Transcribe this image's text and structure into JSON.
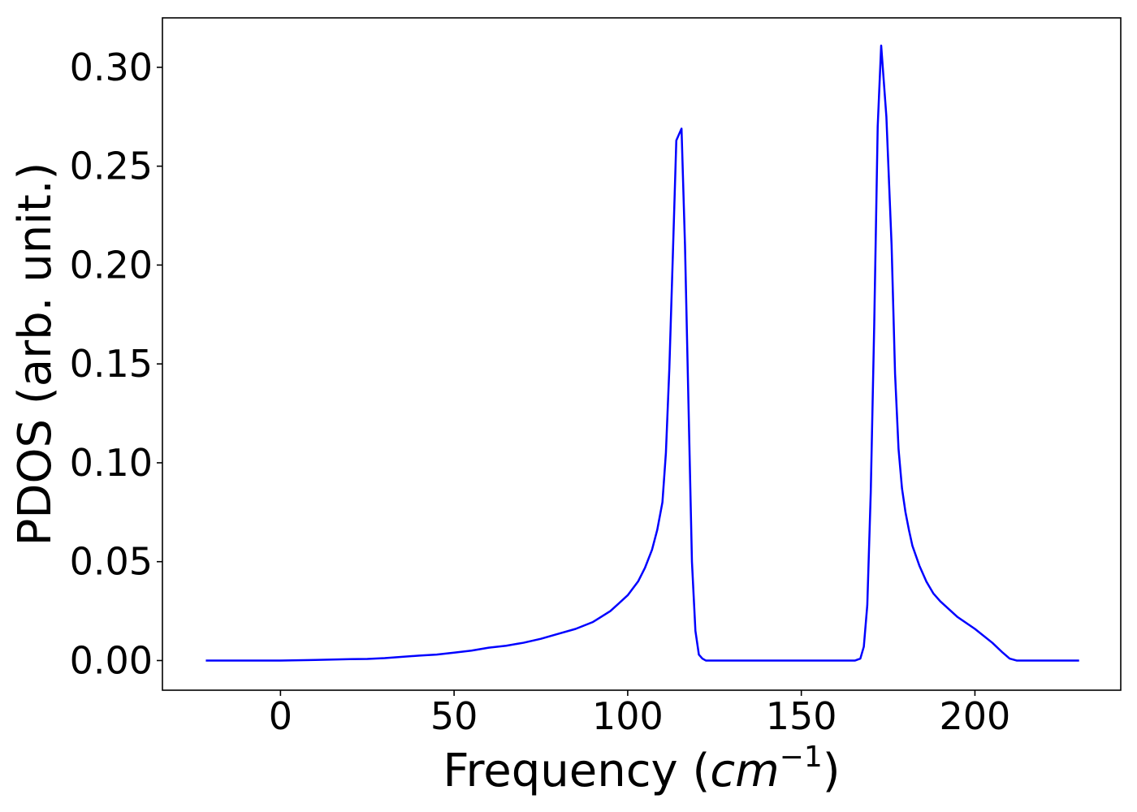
{
  "chart_data": {
    "type": "line",
    "title": "",
    "xlabel": "Frequency (cm⁻¹)",
    "xlabel_parts": {
      "text": "Frequency (",
      "unit": "cm",
      "exponent": "−1",
      "close": ")"
    },
    "ylabel": "PDOS (arb. unit.)",
    "xlim": [
      -34,
      242
    ],
    "ylim": [
      -0.015,
      0.325
    ],
    "xticks": [
      0,
      50,
      100,
      150,
      200
    ],
    "xtick_labels": [
      "0",
      "50",
      "100",
      "150",
      "200"
    ],
    "yticks": [
      0.0,
      0.05,
      0.1,
      0.15,
      0.2,
      0.25,
      0.3
    ],
    "ytick_labels": [
      "0.00",
      "0.05",
      "0.10",
      "0.15",
      "0.20",
      "0.25",
      "0.30"
    ],
    "grid": false,
    "line_color": "#0000ff",
    "series": [
      {
        "x": [
          -21.5,
          0,
          10,
          20,
          25,
          30,
          40,
          45,
          50,
          55,
          60,
          65,
          70,
          75,
          80,
          85,
          90,
          95,
          100,
          103,
          105,
          107,
          108.5,
          110,
          111,
          112,
          113,
          114,
          115.5,
          116.5,
          117.5,
          118.5,
          119.5,
          120.5,
          121.5,
          122.5,
          125,
          130,
          150,
          160,
          165.5,
          167,
          168,
          169,
          170,
          171,
          172,
          173,
          174.5,
          176,
          177,
          178,
          179,
          180,
          181,
          182,
          184,
          186,
          188,
          190,
          195,
          200,
          205,
          208,
          210,
          212,
          215,
          230
        ],
        "y": [
          0.0,
          0.0,
          0.0003,
          0.0007,
          0.0008,
          0.0012,
          0.0025,
          0.003,
          0.004,
          0.005,
          0.0065,
          0.0075,
          0.009,
          0.011,
          0.0135,
          0.016,
          0.0195,
          0.025,
          0.033,
          0.04,
          0.047,
          0.056,
          0.066,
          0.08,
          0.105,
          0.148,
          0.205,
          0.263,
          0.269,
          0.21,
          0.13,
          0.05,
          0.015,
          0.003,
          0.001,
          0.0,
          0.0,
          0.0,
          0.0,
          0.0,
          0.0,
          0.001,
          0.007,
          0.028,
          0.085,
          0.17,
          0.27,
          0.311,
          0.275,
          0.21,
          0.145,
          0.107,
          0.087,
          0.075,
          0.066,
          0.058,
          0.048,
          0.04,
          0.034,
          0.03,
          0.022,
          0.016,
          0.009,
          0.004,
          0.001,
          0.0,
          0.0,
          0.0
        ]
      }
    ]
  }
}
